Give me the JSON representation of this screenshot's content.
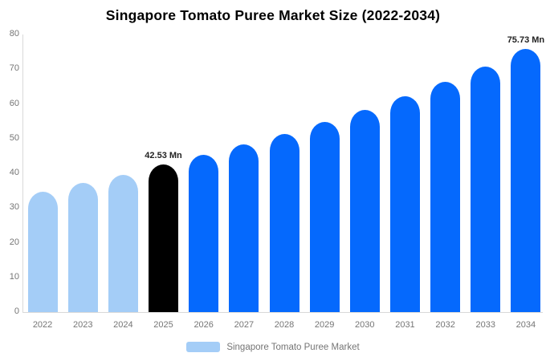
{
  "title": "Singapore Tomato Puree Market Size (2022-2034)",
  "legend": {
    "label": "Singapore Tomato Puree Market"
  },
  "colors": {
    "historical": "#a4cdf7",
    "base_year": "#000000",
    "forecast": "#0569fd",
    "axis_line": "#d9d9d9",
    "tick_text": "#757575",
    "data_label_text": "#222222",
    "background": "#ffffff"
  },
  "chart_data": {
    "type": "bar",
    "title": "Singapore Tomato Puree Market Size (2022-2034)",
    "series_name": "Singapore Tomato Puree Market",
    "categories": [
      "2022",
      "2023",
      "2024",
      "2025",
      "2026",
      "2027",
      "2028",
      "2029",
      "2030",
      "2031",
      "2032",
      "2033",
      "2034"
    ],
    "values": [
      34.7,
      37.2,
      39.5,
      42.53,
      45.3,
      48.3,
      51.4,
      54.8,
      58.3,
      62.2,
      66.3,
      70.7,
      75.73
    ],
    "unit": "Mn",
    "bar_roles": [
      "historical",
      "historical",
      "historical",
      "base_year",
      "forecast",
      "forecast",
      "forecast",
      "forecast",
      "forecast",
      "forecast",
      "forecast",
      "forecast",
      "forecast"
    ],
    "data_labels": [
      {
        "index": 3,
        "text": "42.53 Mn"
      },
      {
        "index": 12,
        "text": "75.73 Mn"
      }
    ],
    "xlabel": "",
    "ylabel": "",
    "ylim": [
      0,
      80
    ],
    "yticks": [
      0,
      10,
      20,
      30,
      40,
      50,
      60,
      70,
      80
    ],
    "grid": false,
    "legend_position": "bottom"
  }
}
